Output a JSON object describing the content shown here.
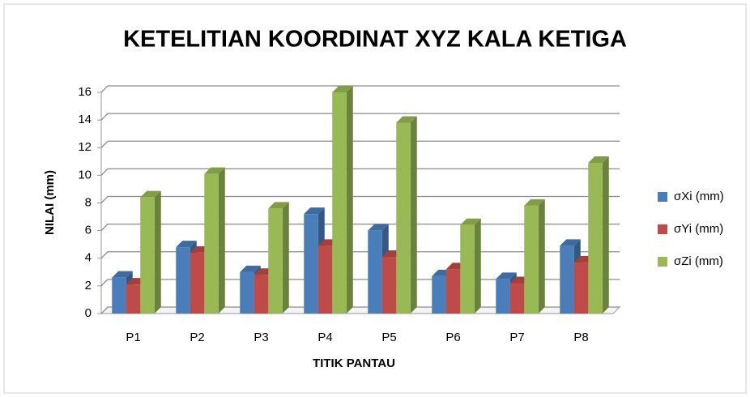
{
  "chart_data": {
    "type": "bar",
    "title": "KETELITIAN KOORDINAT XYZ KALA KETIGA",
    "x_label": "TITIK PANTAU",
    "y_label": "NILAI (mm)",
    "categories": [
      "P1",
      "P2",
      "P3",
      "P4",
      "P5",
      "P6",
      "P7",
      "P8"
    ],
    "series": [
      {
        "name": "σXi (mm)",
        "color": "#4a7ebb",
        "values": [
          2.6,
          4.8,
          3.0,
          7.2,
          6.0,
          2.7,
          2.5,
          4.9
        ]
      },
      {
        "name": "σYi (mm)",
        "color": "#be4b48",
        "values": [
          2.1,
          4.4,
          2.8,
          4.9,
          4.1,
          3.2,
          2.2,
          3.7
        ]
      },
      {
        "name": "σZi (mm)",
        "color": "#98b954",
        "values": [
          8.4,
          10.1,
          7.6,
          16.0,
          13.8,
          6.4,
          7.8,
          10.9
        ]
      }
    ],
    "ylim": [
      0,
      16
    ],
    "yticks": [
      0,
      2,
      4,
      6,
      8,
      10,
      12,
      14,
      16
    ],
    "grid": true,
    "legend": "right"
  }
}
